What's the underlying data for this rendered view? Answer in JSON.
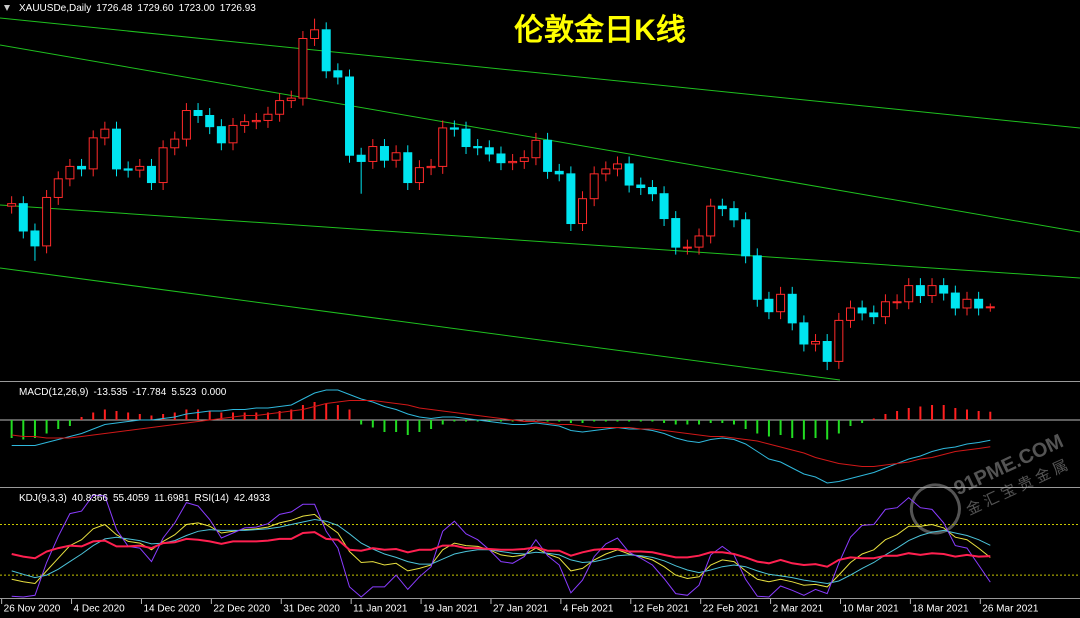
{
  "chart_data": [
    {
      "type": "candlestick",
      "title": "伦敦金日K线",
      "label": "XAUUSDe,Daily",
      "quote": [
        "1726.48",
        "1729.60",
        "1723.00",
        "1726.93"
      ],
      "up_color": "#ff2a2a",
      "down_color": "#00e5f0",
      "title_color": "#ffff00",
      "xlim": [
        -1,
        91.7
      ],
      "ylim": [
        1668,
        1974
      ],
      "open": [
        1808,
        1810,
        1788,
        1776,
        1815,
        1830,
        1840,
        1838,
        1863,
        1870,
        1838,
        1837,
        1840,
        1827,
        1855,
        1862,
        1885,
        1881,
        1872,
        1859,
        1873,
        1876,
        1877,
        1882,
        1893,
        1895,
        1943,
        1950,
        1917,
        1912,
        1849,
        1844,
        1856,
        1845,
        1851,
        1827,
        1839,
        1840,
        1871,
        1870,
        1856,
        1855,
        1850,
        1843,
        1844,
        1847,
        1861,
        1836,
        1834,
        1794,
        1814,
        1834,
        1838,
        1842,
        1825,
        1823,
        1818,
        1798,
        1775,
        1775,
        1784,
        1808,
        1806,
        1797,
        1768,
        1733,
        1723,
        1737,
        1714,
        1697,
        1699,
        1683,
        1716,
        1726,
        1722,
        1719,
        1731,
        1731,
        1744,
        1736,
        1744,
        1738,
        1726,
        1733,
        1726.48
      ],
      "high": [
        1816,
        1816,
        1794,
        1821,
        1836,
        1846,
        1846,
        1869,
        1876,
        1876,
        1844,
        1846,
        1846,
        1861,
        1868,
        1891,
        1891,
        1887,
        1878,
        1879,
        1882,
        1883,
        1888,
        1899,
        1901,
        1949,
        1959,
        1956,
        1923,
        1918,
        1855,
        1862,
        1862,
        1857,
        1857,
        1845,
        1846,
        1877,
        1877,
        1876,
        1862,
        1861,
        1856,
        1850,
        1853,
        1867,
        1867,
        1842,
        1840,
        1820,
        1840,
        1844,
        1848,
        1848,
        1831,
        1829,
        1824,
        1804,
        1781,
        1790,
        1814,
        1814,
        1812,
        1803,
        1774,
        1739,
        1743,
        1743,
        1720,
        1705,
        1705,
        1722,
        1732,
        1732,
        1728,
        1737,
        1737,
        1750,
        1750,
        1750,
        1750,
        1744,
        1739,
        1739,
        1729.6
      ],
      "low": [
        1802,
        1782,
        1764,
        1770,
        1809,
        1824,
        1832,
        1832,
        1857,
        1832,
        1831,
        1831,
        1821,
        1821,
        1849,
        1856,
        1875,
        1866,
        1853,
        1853,
        1867,
        1870,
        1871,
        1876,
        1887,
        1889,
        1937,
        1911,
        1906,
        1843,
        1818,
        1838,
        1839,
        1839,
        1821,
        1821,
        1833,
        1834,
        1864,
        1850,
        1849,
        1844,
        1837,
        1837,
        1838,
        1841,
        1830,
        1828,
        1788,
        1788,
        1808,
        1828,
        1832,
        1819,
        1817,
        1812,
        1792,
        1769,
        1769,
        1769,
        1778,
        1800,
        1791,
        1762,
        1727,
        1717,
        1717,
        1708,
        1691,
        1691,
        1676,
        1677,
        1710,
        1716,
        1713,
        1713,
        1725,
        1725,
        1730,
        1730,
        1732,
        1720,
        1720,
        1720,
        1723
      ],
      "close": [
        1810,
        1788,
        1776,
        1815,
        1830,
        1840,
        1838,
        1863,
        1870,
        1838,
        1837,
        1840,
        1827,
        1855,
        1862,
        1885,
        1881,
        1872,
        1859,
        1873,
        1876,
        1877,
        1882,
        1893,
        1895,
        1943,
        1950,
        1917,
        1912,
        1849,
        1844,
        1856,
        1845,
        1851,
        1827,
        1839,
        1840,
        1871,
        1870,
        1856,
        1855,
        1850,
        1843,
        1844,
        1847,
        1861,
        1836,
        1834,
        1794,
        1814,
        1834,
        1838,
        1842,
        1825,
        1823,
        1818,
        1798,
        1775,
        1775,
        1784,
        1808,
        1806,
        1797,
        1768,
        1733,
        1723,
        1737,
        1714,
        1697,
        1699,
        1683,
        1716,
        1726,
        1722,
        1719,
        1731,
        1731,
        1744,
        1736,
        1744,
        1738,
        1726,
        1733,
        1726,
        1726.93
      ]
    },
    {
      "type": "bar",
      "label": "MACD(12,26,9)",
      "quote": [
        "-13.535",
        "-17.784",
        "5.523",
        "0.000"
      ],
      "positive_color": "#ff2020",
      "negative_color": "#22dd22",
      "xlim": [
        -1,
        91.7
      ],
      "ylim": [
        -44,
        24
      ],
      "values": [
        -12,
        -13,
        -12,
        -9,
        -6,
        -4,
        2,
        5,
        7,
        6,
        5,
        4,
        3,
        4,
        5,
        7,
        7,
        6,
        5,
        5,
        5,
        5,
        5,
        6,
        7,
        10,
        12,
        11,
        10,
        7,
        -3,
        -5,
        -8,
        -8,
        -10,
        -8,
        -6,
        -3,
        -1,
        -1,
        -1,
        -1,
        -1,
        -1,
        0,
        0,
        -1,
        -1,
        -2,
        -2,
        -1,
        -1,
        -1,
        -1,
        -1,
        -1,
        -2,
        -3,
        -3,
        -3,
        -2,
        -2,
        -3,
        -6,
        -9,
        -11,
        -10,
        -12,
        -13,
        -12,
        -13,
        -9,
        -4,
        -2,
        1,
        4,
        6,
        8,
        9,
        10,
        10,
        8,
        7,
        6,
        5.523
      ],
      "series": [
        {
          "color": "#2fb8dc",
          "values": [
            -17,
            -17,
            -17,
            -15,
            -13,
            -11,
            -9,
            -6,
            -3,
            -2,
            -1,
            0,
            0,
            1,
            2,
            4,
            5,
            6,
            6,
            7,
            7,
            8,
            8,
            9,
            10,
            14,
            18,
            20,
            20,
            17,
            14,
            12,
            9,
            7,
            4,
            2,
            1,
            2,
            2,
            1,
            0,
            -1,
            -2,
            -3,
            -3,
            -2,
            -3,
            -4,
            -7,
            -8,
            -7,
            -6,
            -5,
            -6,
            -6,
            -7,
            -9,
            -12,
            -14,
            -15,
            -13,
            -12,
            -13,
            -16,
            -21,
            -26,
            -28,
            -32,
            -36,
            -38,
            -42,
            -41,
            -39,
            -37,
            -35,
            -32,
            -29,
            -26,
            -24,
            -21,
            -19,
            -18,
            -16,
            -15,
            -13.535
          ]
        },
        {
          "color": "#d01818",
          "values": [
            -10,
            -11,
            -11,
            -12,
            -12,
            -12,
            -11,
            -10,
            -9,
            -8,
            -7,
            -6,
            -5,
            -4,
            -3,
            -2,
            -1,
            0,
            1,
            2,
            3,
            3,
            4,
            5,
            6,
            7,
            9,
            11,
            12,
            13,
            13,
            13,
            12,
            11,
            10,
            8,
            7,
            6,
            5,
            4,
            3,
            2,
            1,
            0,
            -1,
            -1,
            -2,
            -3,
            -3,
            -4,
            -5,
            -5,
            -5,
            -5,
            -6,
            -6,
            -7,
            -8,
            -9,
            -10,
            -11,
            -11,
            -12,
            -13,
            -14,
            -16,
            -18,
            -20,
            -22,
            -25,
            -27,
            -29,
            -30,
            -31,
            -31,
            -30,
            -29,
            -28,
            -26,
            -25,
            -23,
            -21,
            -20,
            -19,
            -17.784
          ]
        }
      ]
    },
    {
      "type": "line",
      "label": "KDJ(9,3,3)",
      "quote": [
        "40.8366",
        "55.4059",
        "11.6981"
      ],
      "label2": "RSI(14)",
      "quote2": [
        "42.4933"
      ],
      "xlim": [
        -1,
        91.7
      ],
      "ylim": [
        -6,
        121
      ],
      "levels": [
        80,
        20
      ],
      "level_color": "#c8c800",
      "xticks": [
        {
          "value": 0,
          "label": "26 Nov 2020"
        },
        {
          "value": 6,
          "label": "4 Dec 2020"
        },
        {
          "value": 12,
          "label": "14 Dec 2020"
        },
        {
          "value": 18,
          "label": "22 Dec 2020"
        },
        {
          "value": 24,
          "label": "31 Dec 2020"
        },
        {
          "value": 30,
          "label": "11 Jan 2021"
        },
        {
          "value": 36,
          "label": "19 Jan 2021"
        },
        {
          "value": 42,
          "label": "27 Jan 2021"
        },
        {
          "value": 48,
          "label": "4 Feb 2021"
        },
        {
          "value": 54,
          "label": "12 Feb 2021"
        },
        {
          "value": 60,
          "label": "22 Feb 2021"
        },
        {
          "value": 66,
          "label": "2 Mar 2021"
        },
        {
          "value": 72,
          "label": "10 Mar 2021"
        },
        {
          "value": 78,
          "label": "18 Mar 2021"
        },
        {
          "value": 84,
          "label": "26 Mar 2021"
        }
      ],
      "series": [
        {
          "color": "#e8e040",
          "values": [
            15,
            12,
            10,
            25,
            40,
            55,
            62,
            75,
            80,
            68,
            60,
            58,
            50,
            60,
            68,
            80,
            82,
            78,
            70,
            72,
            74,
            75,
            77,
            82,
            85,
            90,
            92,
            80,
            70,
            48,
            35,
            36,
            32,
            34,
            25,
            28,
            32,
            50,
            58,
            55,
            54,
            50,
            44,
            42,
            44,
            52,
            45,
            40,
            25,
            28,
            38,
            45,
            50,
            45,
            42,
            38,
            30,
            20,
            16,
            18,
            32,
            38,
            36,
            25,
            15,
            12,
            15,
            12,
            8,
            9,
            6,
            20,
            35,
            45,
            50,
            62,
            68,
            78,
            78,
            80,
            76,
            65,
            62,
            52,
            40.8366
          ]
        },
        {
          "color": "#4cc3d9",
          "values": [
            25,
            21,
            17,
            20,
            27,
            36,
            45,
            55,
            63,
            65,
            63,
            61,
            57,
            58,
            61,
            67,
            72,
            74,
            73,
            73,
            73,
            74,
            75,
            77,
            80,
            83,
            86,
            84,
            79,
            69,
            58,
            51,
            45,
            41,
            36,
            33,
            33,
            39,
            45,
            48,
            50,
            50,
            48,
            46,
            45,
            47,
            46,
            44,
            38,
            35,
            36,
            39,
            43,
            44,
            43,
            41,
            37,
            31,
            26,
            23,
            26,
            30,
            32,
            30,
            25,
            21,
            19,
            17,
            14,
            12,
            10,
            13,
            20,
            28,
            35,
            44,
            52,
            61,
            67,
            71,
            73,
            70,
            67,
            62,
            55.4059
          ]
        },
        {
          "color": "#8a3cff",
          "values": [
            -5,
            -6,
            -4,
            35,
            66,
            93,
            96,
            115,
            114,
            74,
            54,
            52,
            36,
            64,
            82,
            106,
            102,
            86,
            64,
            70,
            76,
            77,
            81,
            92,
            95,
            104,
            104,
            72,
            52,
            6,
            -6,
            6,
            6,
            20,
            3,
            18,
            30,
            72,
            84,
            69,
            62,
            50,
            36,
            34,
            42,
            62,
            43,
            32,
            -1,
            14,
            42,
            57,
            64,
            47,
            40,
            32,
            16,
            -2,
            -4,
            8,
            44,
            54,
            44,
            15,
            -5,
            -6,
            7,
            2,
            -4,
            3,
            -2,
            34,
            65,
            79,
            80,
            98,
            100,
            112,
            100,
            98,
            82,
            55,
            52,
            32,
            11.6981
          ]
        },
        {
          "color": "#ff2050",
          "width": 2,
          "values": [
            45,
            42,
            40,
            48,
            52,
            55,
            54,
            60,
            61,
            54,
            54,
            55,
            52,
            58,
            59,
            63,
            62,
            60,
            57,
            60,
            60,
            60,
            61,
            63,
            63,
            70,
            71,
            63,
            62,
            50,
            49,
            52,
            50,
            51,
            47,
            50,
            50,
            55,
            55,
            52,
            52,
            51,
            50,
            50,
            51,
            53,
            49,
            49,
            43,
            47,
            50,
            51,
            51,
            48,
            48,
            47,
            44,
            41,
            41,
            43,
            47,
            47,
            45,
            41,
            36,
            34,
            38,
            34,
            32,
            33,
            30,
            38,
            41,
            40,
            40,
            43,
            43,
            46,
            44,
            46,
            45,
            42,
            44,
            42,
            42.4933
          ]
        }
      ]
    }
  ],
  "watermark": {
    "site": "91PME.COM",
    "name": "金汇宝贵金属"
  }
}
